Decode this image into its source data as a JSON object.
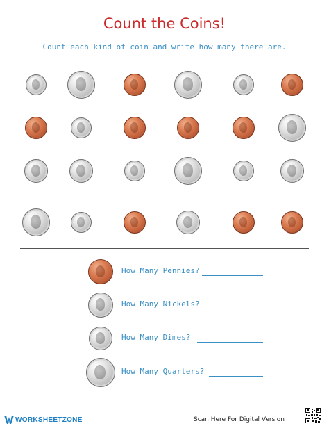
{
  "title": "Count the Coins!",
  "instructions": "Count each kind of coin and write how many there are.",
  "colors": {
    "title": "#cc2a2a",
    "text": "#3a8fc4",
    "brand": "#1e7fc2"
  },
  "coin_grid": [
    [
      "dime",
      "quarter",
      "penny",
      "quarter",
      "dime",
      "penny"
    ],
    [
      "penny",
      "dime",
      "penny",
      "penny",
      "penny",
      "quarter"
    ],
    [
      "nickel",
      "nickel",
      "dime",
      "quarter",
      "dime",
      "nickel"
    ],
    [
      "quarter",
      "dime",
      "penny",
      "nickel",
      "penny",
      "penny"
    ]
  ],
  "questions": [
    {
      "coin": "penny",
      "label": "How Many Pennies?"
    },
    {
      "coin": "nickel",
      "label": "How Many Nickels?"
    },
    {
      "coin": "dime",
      "label": "How Many Dimes?"
    },
    {
      "coin": "quarter",
      "label": "How Many Quarters?"
    }
  ],
  "footer": {
    "logo_text": "WORKSHEETZONE",
    "logo_icon": "worksheetzone-logo-icon",
    "scan_text": "Scan Here For Digital Version",
    "qr_icon": "qr-code-icon"
  }
}
